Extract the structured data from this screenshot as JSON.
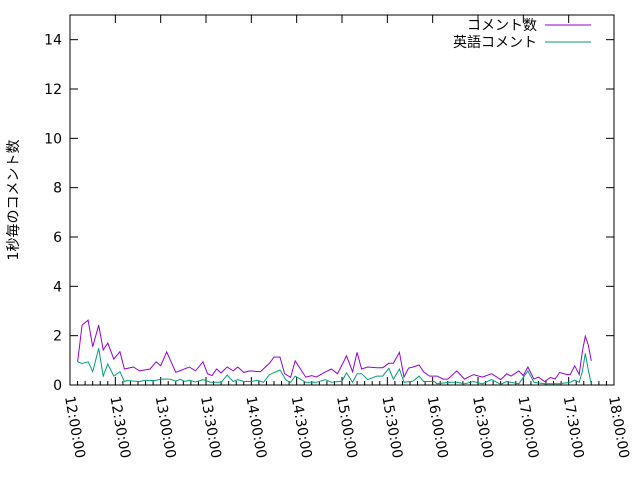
{
  "chart_data": {
    "type": "line",
    "title": "",
    "xlabel": "",
    "ylabel": "1秒毎のコメント数",
    "xlim": [
      "12:00:00",
      "18:00:00"
    ],
    "ylim": [
      0,
      15
    ],
    "x_ticks": [
      "12:00:00",
      "12:30:00",
      "13:00:00",
      "13:30:00",
      "14:00:00",
      "14:30:00",
      "15:00:00",
      "15:30:00",
      "16:00:00",
      "16:30:00",
      "17:00:00",
      "17:30:00",
      "18:00:00"
    ],
    "y_ticks": [
      "0",
      "2",
      "4",
      "6",
      "8",
      "10",
      "12",
      "14"
    ],
    "grid": false,
    "legend_position": "top-right",
    "series": [
      {
        "name": "コメント数",
        "color": "#9400d3",
        "points": [
          [
            "12:05",
            0.94
          ],
          [
            "12:08",
            2.43
          ],
          [
            "12:12",
            2.63
          ],
          [
            "12:15",
            1.55
          ],
          [
            "12:19",
            2.43
          ],
          [
            "12:22",
            1.42
          ],
          [
            "12:25",
            1.7
          ],
          [
            "12:29",
            1.05
          ],
          [
            "12:33",
            1.35
          ],
          [
            "12:36",
            0.65
          ],
          [
            "12:42",
            0.73
          ],
          [
            "12:46",
            0.57
          ],
          [
            "12:53",
            0.65
          ],
          [
            "12:57",
            0.94
          ],
          [
            "13:00",
            0.78
          ],
          [
            "13:04",
            1.34
          ],
          [
            "13:10",
            0.51
          ],
          [
            "13:19",
            0.73
          ],
          [
            "13:23",
            0.57
          ],
          [
            "13:28",
            0.94
          ],
          [
            "13:31",
            0.46
          ],
          [
            "13:34",
            0.38
          ],
          [
            "13:37",
            0.65
          ],
          [
            "13:40",
            0.49
          ],
          [
            "13:44",
            0.73
          ],
          [
            "13:48",
            0.57
          ],
          [
            "13:51",
            0.73
          ],
          [
            "13:55",
            0.51
          ],
          [
            "13:59",
            0.57
          ],
          [
            "14:06",
            0.54
          ],
          [
            "14:12",
            0.88
          ],
          [
            "14:15",
            1.13
          ],
          [
            "14:19",
            1.13
          ],
          [
            "14:22",
            0.46
          ],
          [
            "14:26",
            0.31
          ],
          [
            "14:29",
            0.98
          ],
          [
            "14:36",
            0.32
          ],
          [
            "14:40",
            0.38
          ],
          [
            "14:43",
            0.32
          ],
          [
            "14:49",
            0.53
          ],
          [
            "14:53",
            0.65
          ],
          [
            "14:57",
            0.46
          ],
          [
            "15:00",
            0.81
          ],
          [
            "15:03",
            1.18
          ],
          [
            "15:07",
            0.54
          ],
          [
            "15:10",
            1.32
          ],
          [
            "15:13",
            0.65
          ],
          [
            "15:17",
            0.73
          ],
          [
            "15:23",
            0.7
          ],
          [
            "15:27",
            0.7
          ],
          [
            "15:31",
            0.88
          ],
          [
            "15:34",
            0.88
          ],
          [
            "15:38",
            1.32
          ],
          [
            "15:41",
            0.32
          ],
          [
            "15:44",
            0.68
          ],
          [
            "15:47",
            0.73
          ],
          [
            "15:51",
            0.81
          ],
          [
            "15:54",
            0.53
          ],
          [
            "15:58",
            0.36
          ],
          [
            "16:03",
            0.36
          ],
          [
            "16:07",
            0.24
          ],
          [
            "16:10",
            0.24
          ],
          [
            "16:16",
            0.57
          ],
          [
            "16:21",
            0.24
          ],
          [
            "16:27",
            0.42
          ],
          [
            "16:33",
            0.32
          ],
          [
            "16:39",
            0.46
          ],
          [
            "16:45",
            0.22
          ],
          [
            "16:49",
            0.45
          ],
          [
            "16:52",
            0.36
          ],
          [
            "16:57",
            0.57
          ],
          [
            "17:00",
            0.38
          ],
          [
            "17:03",
            0.73
          ],
          [
            "17:07",
            0.24
          ],
          [
            "17:10",
            0.32
          ],
          [
            "17:14",
            0.14
          ],
          [
            "17:18",
            0.31
          ],
          [
            "17:21",
            0.24
          ],
          [
            "17:24",
            0.51
          ],
          [
            "17:29",
            0.42
          ],
          [
            "17:31",
            0.42
          ],
          [
            "17:34",
            0.78
          ],
          [
            "17:37",
            0.42
          ],
          [
            "17:39",
            1.35
          ],
          [
            "17:41",
            1.98
          ],
          [
            "17:43",
            1.62
          ],
          [
            "17:45",
            0.98
          ]
        ]
      },
      {
        "name": "英語コメント",
        "color": "#009e73",
        "points": [
          [
            "12:05",
            0.94
          ],
          [
            "12:08",
            0.87
          ],
          [
            "12:12",
            0.94
          ],
          [
            "12:15",
            0.54
          ],
          [
            "12:19",
            1.49
          ],
          [
            "12:22",
            0.36
          ],
          [
            "12:25",
            0.85
          ],
          [
            "12:29",
            0.36
          ],
          [
            "12:33",
            0.54
          ],
          [
            "12:36",
            0.14
          ],
          [
            "12:38",
            0.18
          ],
          [
            "12:46",
            0.14
          ],
          [
            "12:50",
            0.19
          ],
          [
            "12:56",
            0.18
          ],
          [
            "13:00",
            0.24
          ],
          [
            "13:06",
            0.24
          ],
          [
            "13:10",
            0.16
          ],
          [
            "13:13",
            0.23
          ],
          [
            "13:16",
            0.14
          ],
          [
            "13:19",
            0.2
          ],
          [
            "13:23",
            0.12
          ],
          [
            "13:28",
            0.22
          ],
          [
            "13:33",
            0.11
          ],
          [
            "13:40",
            0.11
          ],
          [
            "13:44",
            0.4
          ],
          [
            "13:48",
            0.14
          ],
          [
            "13:51",
            0.22
          ],
          [
            "13:55",
            0.14
          ],
          [
            "14:00",
            0.14
          ],
          [
            "14:04",
            0.19
          ],
          [
            "14:08",
            0.11
          ],
          [
            "14:12",
            0.42
          ],
          [
            "14:19",
            0.61
          ],
          [
            "14:23",
            0.2
          ],
          [
            "14:26",
            0.11
          ],
          [
            "14:29",
            0.36
          ],
          [
            "14:36",
            0.11
          ],
          [
            "14:43",
            0.11
          ],
          [
            "14:49",
            0.22
          ],
          [
            "14:53",
            0.11
          ],
          [
            "15:00",
            0.16
          ],
          [
            "15:03",
            0.49
          ],
          [
            "15:07",
            0.11
          ],
          [
            "15:10",
            0.46
          ],
          [
            "15:13",
            0.46
          ],
          [
            "15:17",
            0.22
          ],
          [
            "15:23",
            0.36
          ],
          [
            "15:27",
            0.36
          ],
          [
            "15:31",
            0.68
          ],
          [
            "15:34",
            0.24
          ],
          [
            "15:38",
            0.65
          ],
          [
            "15:41",
            0.11
          ],
          [
            "15:47",
            0.16
          ],
          [
            "15:51",
            0.36
          ],
          [
            "15:54",
            0.14
          ],
          [
            "16:01",
            0.14
          ],
          [
            "16:03",
            0.05
          ],
          [
            "16:11",
            0.11
          ],
          [
            "16:16",
            0.11
          ],
          [
            "16:21",
            0.05
          ],
          [
            "16:27",
            0.14
          ],
          [
            "16:33",
            0.05
          ],
          [
            "16:39",
            0.22
          ],
          [
            "16:45",
            0.03
          ],
          [
            "16:49",
            0.14
          ],
          [
            "16:57",
            0.05
          ],
          [
            "17:03",
            0.57
          ],
          [
            "17:07",
            0.11
          ],
          [
            "17:14",
            0.05
          ],
          [
            "17:24",
            0.05
          ],
          [
            "17:31",
            0.11
          ],
          [
            "17:34",
            0.2
          ],
          [
            "17:37",
            0.11
          ],
          [
            "17:39",
            0.54
          ],
          [
            "17:41",
            1.28
          ],
          [
            "17:43",
            0.61
          ],
          [
            "17:45",
            0.03
          ]
        ]
      }
    ]
  }
}
